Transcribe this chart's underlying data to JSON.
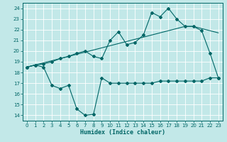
{
  "xlabel": "Humidex (Indice chaleur)",
  "bg_color": "#c2e8e8",
  "grid_color": "#aad4d4",
  "line_color": "#006666",
  "xlim": [
    -0.5,
    23.5
  ],
  "ylim": [
    13.5,
    24.5
  ],
  "xticks": [
    0,
    1,
    2,
    3,
    4,
    5,
    6,
    7,
    8,
    9,
    10,
    11,
    12,
    13,
    14,
    15,
    16,
    17,
    18,
    19,
    20,
    21,
    22,
    23
  ],
  "yticks": [
    14,
    15,
    16,
    17,
    18,
    19,
    20,
    21,
    22,
    23,
    24
  ],
  "line_upper_x": [
    0,
    1,
    2,
    3,
    4,
    5,
    6,
    7,
    8,
    9,
    10,
    11,
    12,
    13,
    14,
    15,
    16,
    17,
    18,
    19,
    20,
    21,
    22,
    23
  ],
  "line_upper_y": [
    18.5,
    18.7,
    18.8,
    19.0,
    19.3,
    19.5,
    19.8,
    20.0,
    19.5,
    19.3,
    21.0,
    21.8,
    20.6,
    20.8,
    21.5,
    23.6,
    23.2,
    24.0,
    23.0,
    22.3,
    22.3,
    21.9,
    19.8,
    17.5
  ],
  "line_trend_x": [
    0,
    1,
    2,
    3,
    4,
    5,
    6,
    7,
    8,
    9,
    10,
    11,
    12,
    13,
    14,
    15,
    16,
    17,
    18,
    19,
    20,
    21,
    22,
    23
  ],
  "line_trend_y": [
    18.5,
    18.7,
    18.9,
    19.1,
    19.3,
    19.5,
    19.7,
    19.9,
    20.1,
    20.3,
    20.5,
    20.7,
    20.9,
    21.1,
    21.3,
    21.5,
    21.7,
    21.9,
    22.1,
    22.3,
    22.3,
    22.1,
    21.9,
    21.7
  ],
  "line_lower_x": [
    0,
    1,
    2,
    3,
    4,
    5,
    6,
    7,
    8,
    9,
    10,
    11,
    12,
    13,
    14,
    15,
    16,
    17,
    18,
    19,
    20,
    21,
    22,
    23
  ],
  "line_lower_y": [
    18.5,
    18.7,
    18.5,
    16.8,
    16.5,
    16.8,
    14.6,
    14.0,
    14.1,
    17.5,
    17.0,
    17.0,
    17.0,
    17.0,
    17.0,
    17.0,
    17.2,
    17.2,
    17.2,
    17.2,
    17.2,
    17.2,
    17.5,
    17.5
  ]
}
